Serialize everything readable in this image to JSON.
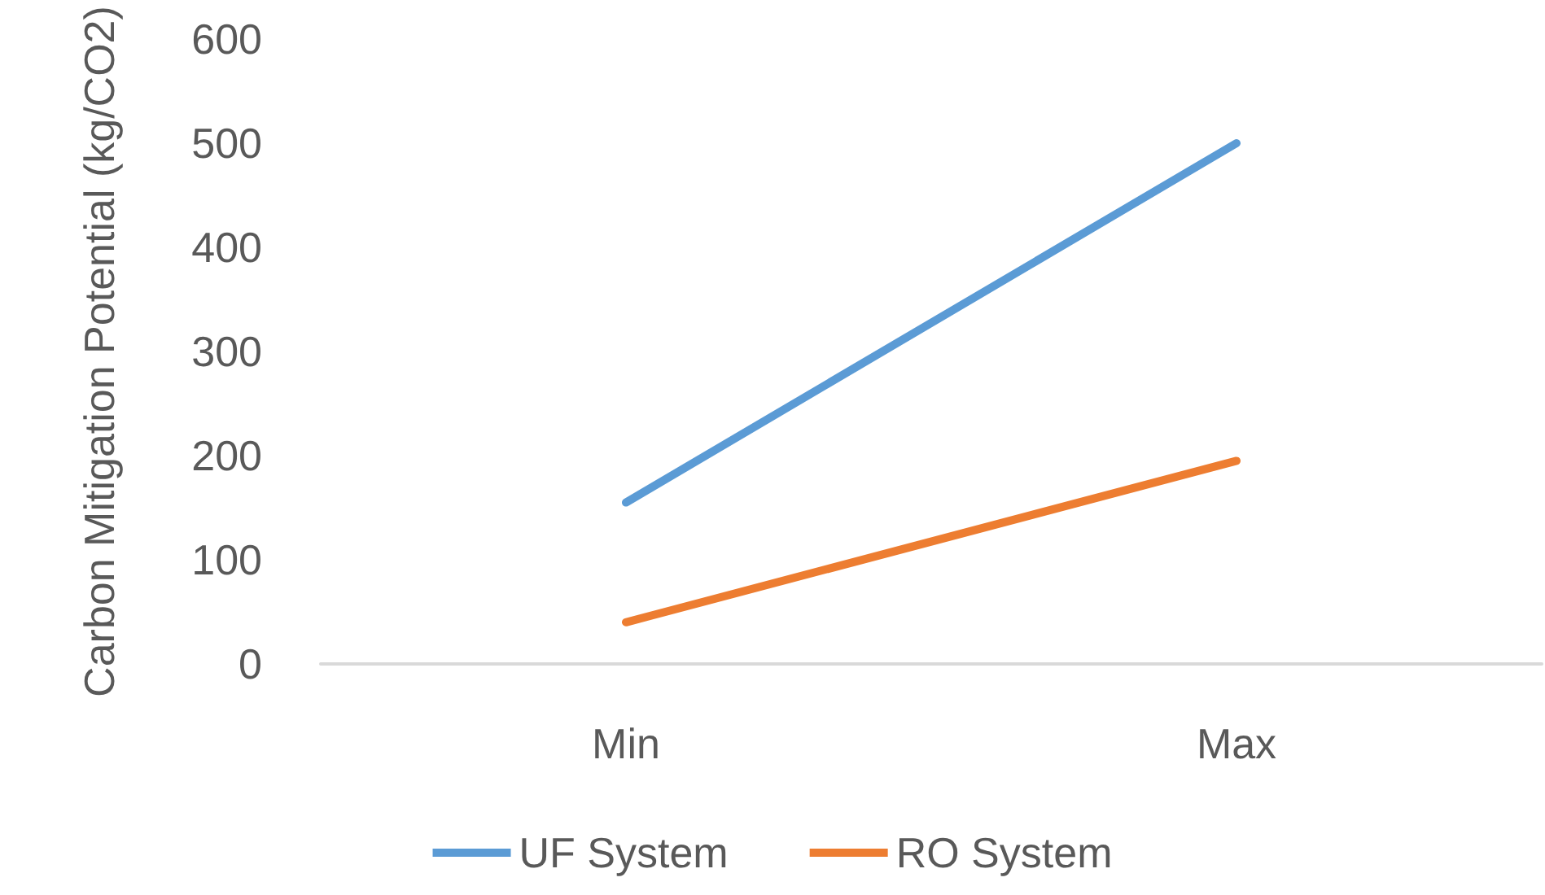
{
  "chart_data": {
    "type": "line",
    "ylabel": "Carbon Mitigation Potential (kg/CO2)",
    "categories": [
      "Min",
      "Max"
    ],
    "series": [
      {
        "name": "UF System",
        "color": "#5b9bd5",
        "values": [
          155,
          500
        ]
      },
      {
        "name": "RO System",
        "color": "#ed7d31",
        "values": [
          40,
          195
        ]
      }
    ],
    "ylim": [
      0,
      600
    ],
    "yticks": [
      0,
      100,
      200,
      300,
      400,
      500,
      600
    ],
    "grid": false,
    "legend": "bottom",
    "marker": "none",
    "line_style": "solid"
  }
}
